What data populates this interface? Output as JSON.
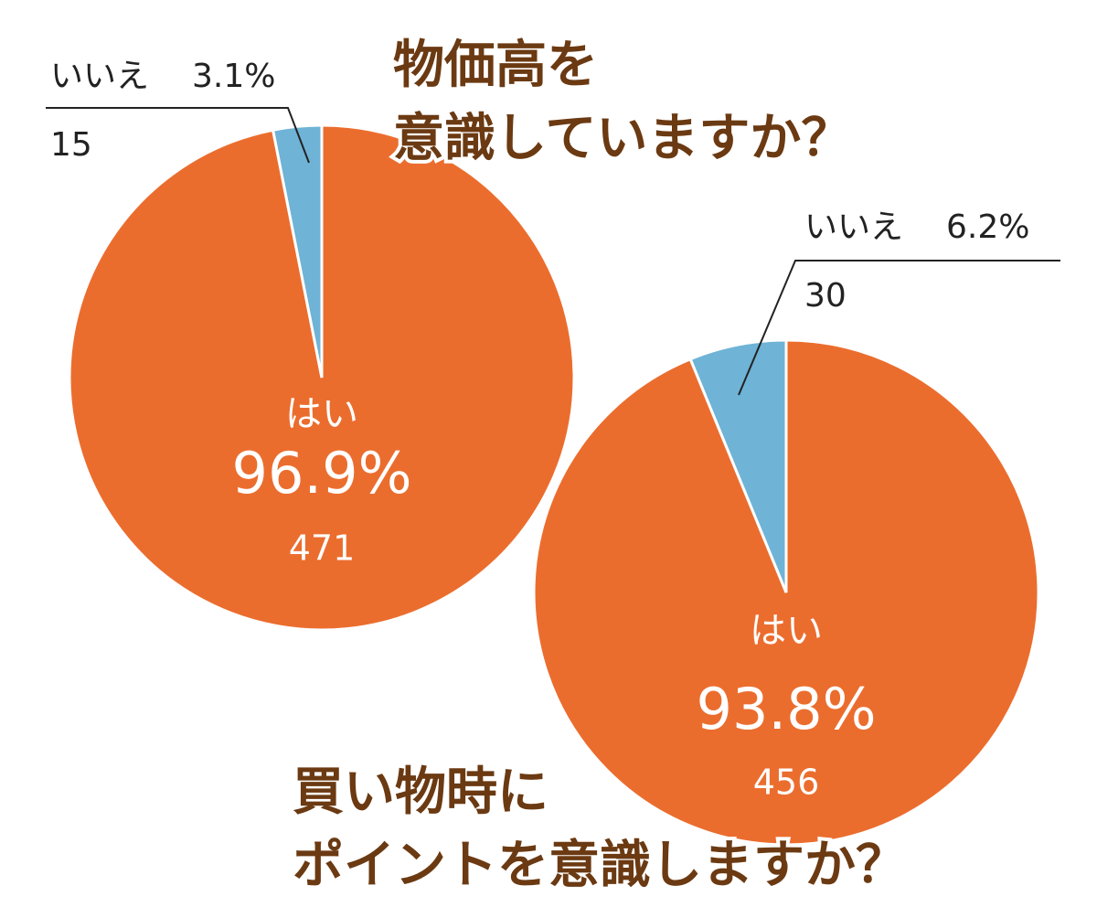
{
  "chart_data": [
    {
      "type": "pie",
      "title": [
        "物価高を",
        "意識していますか？"
      ],
      "categories": [
        "はい",
        "いいえ"
      ],
      "values": [
        96.9,
        3.1
      ],
      "value_labels": [
        "96.9%",
        "3.1%"
      ],
      "counts": [
        471,
        15
      ],
      "colors": [
        "#eb6d2e",
        "#6fb3d6"
      ]
    },
    {
      "type": "pie",
      "title": [
        "買い物時に",
        "ポイントを意識しますか？"
      ],
      "categories": [
        "はい",
        "いいえ"
      ],
      "values": [
        93.8,
        6.2
      ],
      "value_labels": [
        "93.8%",
        "6.2%"
      ],
      "counts": [
        456,
        30
      ],
      "colors": [
        "#eb6d2e",
        "#6fb3d6"
      ]
    }
  ]
}
